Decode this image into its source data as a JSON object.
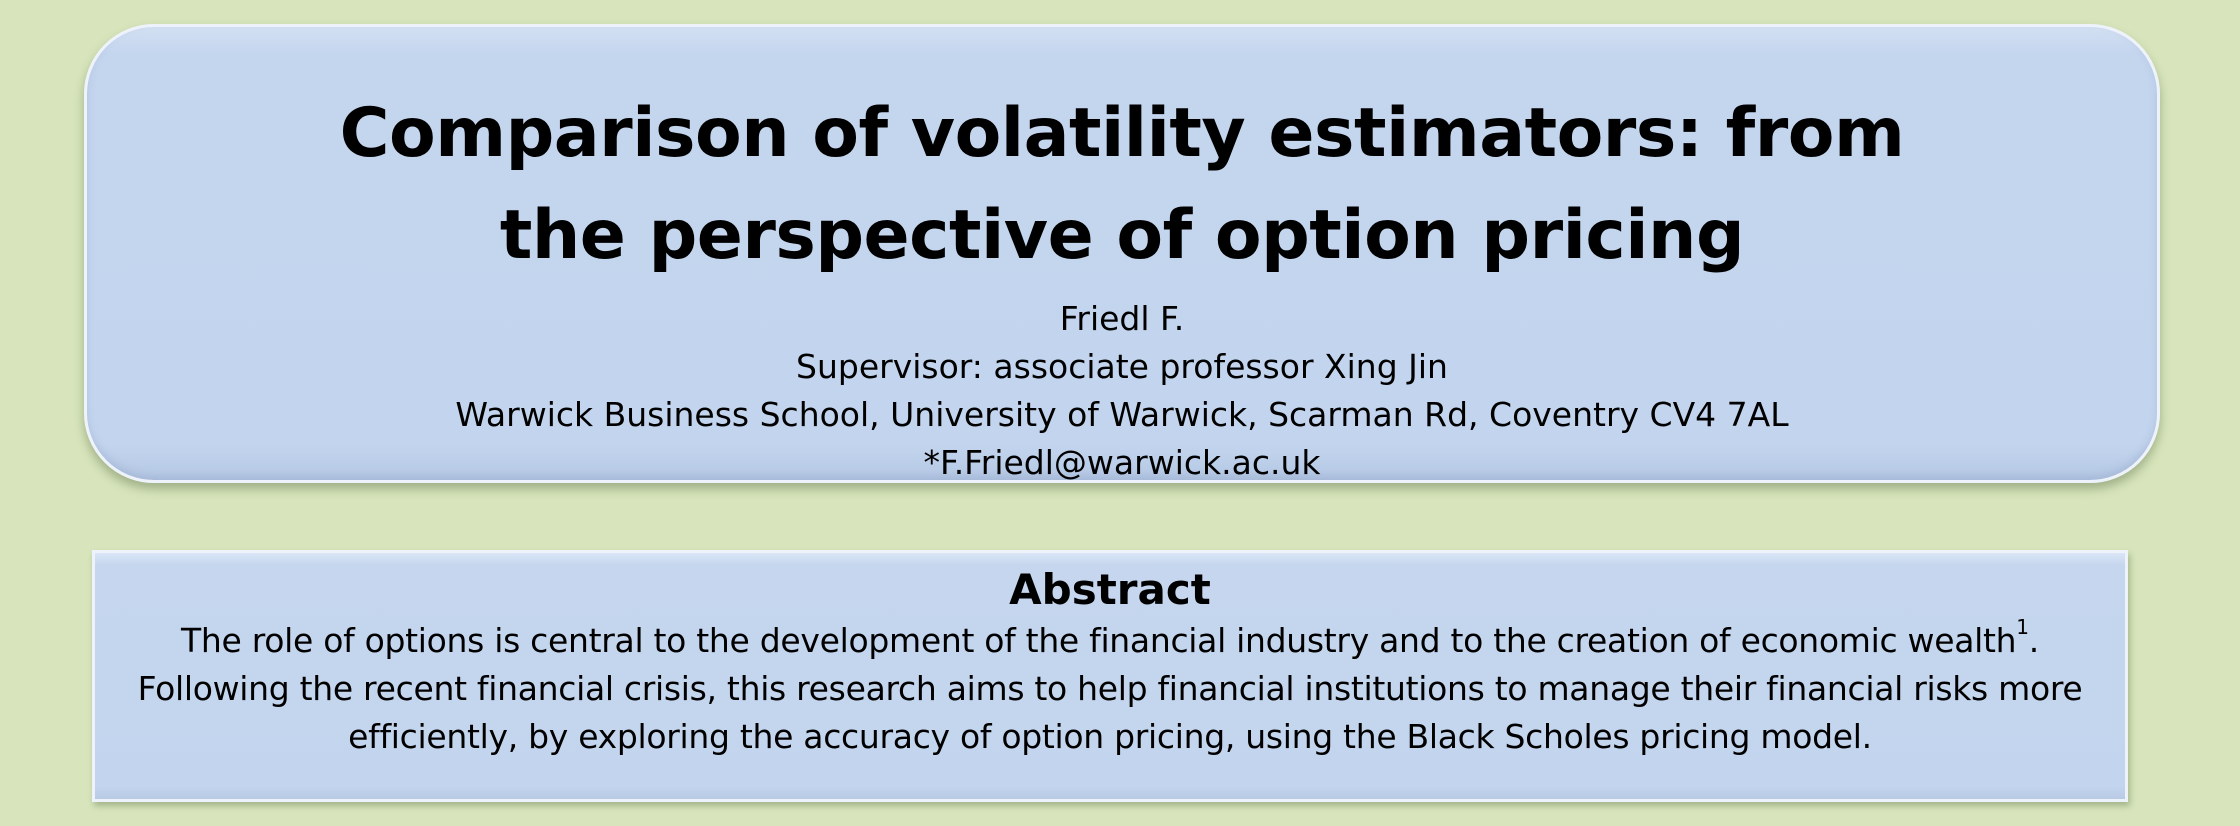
{
  "header": {
    "title_line1": "Comparison of volatility estimators: from",
    "title_line2": "the perspective of option pricing",
    "author": "Friedl F.",
    "supervisor": "Supervisor: associate professor Xing Jin",
    "affiliation": "Warwick Business School, University of Warwick, Scarman Rd, Coventry CV4 7AL",
    "email": "*F.Friedl@warwick.ac.uk"
  },
  "abstract": {
    "heading": "Abstract",
    "text_part1": "The role of options is central to the development of the financial industry and to the creation of economic wealth",
    "footnote_marker": "1",
    "text_part2": ". Following the recent financial crisis, this research aims to help financial institutions to manage their financial risks more efficiently, by exploring the accuracy of option pricing, using the Black Scholes pricing model."
  },
  "colors": {
    "background": "#d8e5bc",
    "panel": "#c3d5ee",
    "panel_border": "#eef3fb"
  }
}
